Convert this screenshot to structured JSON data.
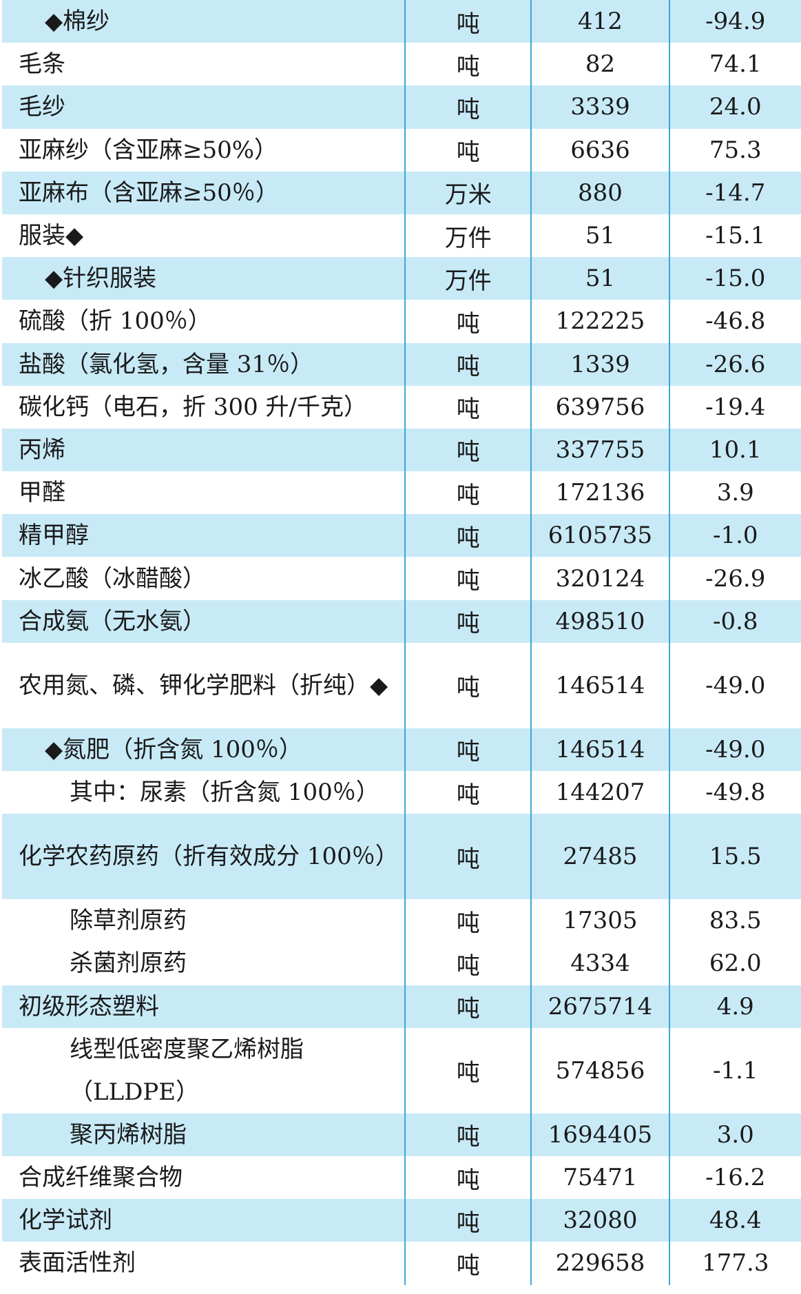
{
  "rows": [
    {
      "name": "◆棉纱",
      "unit": "吨",
      "value": "412",
      "change": "-94.9",
      "indent": 1,
      "shade": true
    },
    {
      "name": "毛条",
      "unit": "吨",
      "value": "82",
      "change": "74.1",
      "indent": 0,
      "shade": false
    },
    {
      "name": "毛纱",
      "unit": "吨",
      "value": "3339",
      "change": "24.0",
      "indent": 0,
      "shade": true
    },
    {
      "name": "亚麻纱（含亚麻≥50%）",
      "unit": "吨",
      "value": "6636",
      "change": "75.3",
      "indent": 0,
      "shade": false
    },
    {
      "name": "亚麻布（含亚麻≥50％）",
      "unit": "万米",
      "value": "880",
      "change": "-14.7",
      "indent": 0,
      "shade": true
    },
    {
      "name": "服装◆",
      "unit": "万件",
      "value": "51",
      "change": "-15.1",
      "indent": 0,
      "shade": false
    },
    {
      "name": "◆针织服装",
      "unit": "万件",
      "value": "51",
      "change": "-15.0",
      "indent": 1,
      "shade": true
    },
    {
      "name": "硫酸（折 100％）",
      "unit": "吨",
      "value": "122225",
      "change": "-46.8",
      "indent": 0,
      "shade": false
    },
    {
      "name": "盐酸（氯化氢，含量 31％）",
      "unit": "吨",
      "value": "1339",
      "change": "-26.6",
      "indent": 0,
      "shade": true
    },
    {
      "name": "碳化钙（电石，折 300 升/千克）",
      "unit": "吨",
      "value": "639756",
      "change": "-19.4",
      "indent": 0,
      "shade": false
    },
    {
      "name": "丙烯",
      "unit": "吨",
      "value": "337755",
      "change": "10.1",
      "indent": 0,
      "shade": true
    },
    {
      "name": "甲醛",
      "unit": "吨",
      "value": "172136",
      "change": "3.9",
      "indent": 0,
      "shade": false
    },
    {
      "name": "精甲醇",
      "unit": "吨",
      "value": "6105735",
      "change": "-1.0",
      "indent": 0,
      "shade": true
    },
    {
      "name": "冰乙酸（冰醋酸）",
      "unit": "吨",
      "value": "320124",
      "change": "-26.9",
      "indent": 0,
      "shade": false
    },
    {
      "name": "合成氨（无水氨）",
      "unit": "吨",
      "value": "498510",
      "change": "-0.8",
      "indent": 0,
      "shade": true
    },
    {
      "name": "农用氮、磷、钾化学肥料（折纯）◆",
      "unit": "吨",
      "value": "146514",
      "change": "-49.0",
      "indent": 0,
      "shade": false,
      "double": true
    },
    {
      "name": "◆氮肥（折含氮 100％）",
      "unit": "吨",
      "value": "146514",
      "change": "-49.0",
      "indent": 1,
      "shade": true
    },
    {
      "name": "其中：尿素（折含氮 100％）",
      "unit": "吨",
      "value": "144207",
      "change": "-49.8",
      "indent": 2,
      "shade": false
    },
    {
      "name": "化学农药原药（折有效成分 100％）",
      "unit": "吨",
      "value": "27485",
      "change": "15.5",
      "indent": 0,
      "shade": true,
      "double": true
    },
    {
      "name": "除草剂原药",
      "unit": "吨",
      "value": "17305",
      "change": "83.5",
      "indent": 2,
      "shade": false
    },
    {
      "name": "杀菌剂原药",
      "unit": "吨",
      "value": "4334",
      "change": "62.0",
      "indent": 2,
      "shade": false
    },
    {
      "name": "初级形态塑料",
      "unit": "吨",
      "value": "2675714",
      "change": "4.9",
      "indent": 0,
      "shade": true
    },
    {
      "name": "线型低密度聚乙烯树脂（LLDPE）",
      "unit": "吨",
      "value": "574856",
      "change": "-1.1",
      "indent": 2,
      "shade": false,
      "double": true
    },
    {
      "name": "聚丙烯树脂",
      "unit": "吨",
      "value": "1694405",
      "change": "3.0",
      "indent": 2,
      "shade": true
    },
    {
      "name": "合成纤维聚合物",
      "unit": "吨",
      "value": "75471",
      "change": "-16.2",
      "indent": 0,
      "shade": false
    },
    {
      "name": "化学试剂",
      "unit": "吨",
      "value": "32080",
      "change": "48.4",
      "indent": 0,
      "shade": true
    },
    {
      "name": "表面活性剂",
      "unit": "吨",
      "value": "229658",
      "change": "177.3",
      "indent": 0,
      "shade": false
    }
  ]
}
